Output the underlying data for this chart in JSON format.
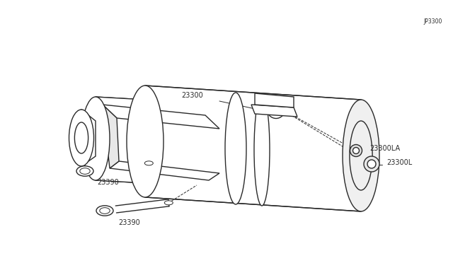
{
  "bg_color": "#ffffff",
  "line_color": "#2a2a2a",
  "label_color": "#2a2a2a",
  "watermark": "JP3300",
  "fig_width": 6.4,
  "fig_height": 3.72,
  "dpi": 100
}
